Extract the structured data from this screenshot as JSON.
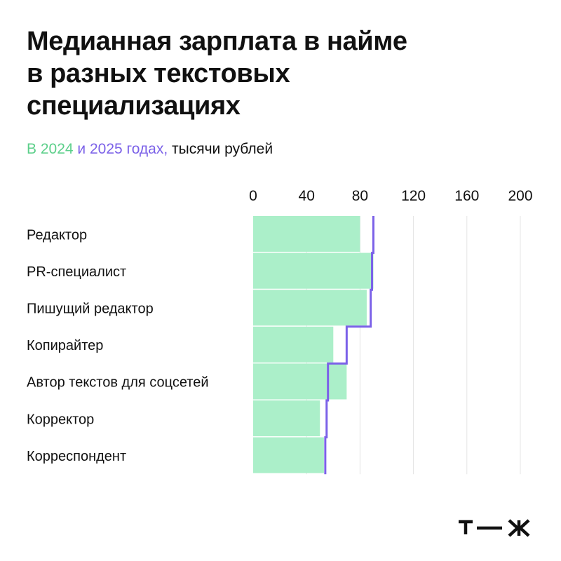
{
  "title_lines": [
    "Медианная зарплата в найме",
    "в разных текстовых",
    "специализациях"
  ],
  "subtitle": {
    "part1": "В 2024",
    "part2": " и 2025 годах,",
    "part3": " тысячи рублей"
  },
  "colors": {
    "series_2024": "#abefc9",
    "series_2025": "#7b61e8",
    "subtitle_2024": "#5ccf8a",
    "grid": "#e4e4e4",
    "text": "#111111"
  },
  "logo_text": "т—ж",
  "chart_data": {
    "type": "bar",
    "orientation": "horizontal",
    "xlim": [
      0,
      200
    ],
    "ticks": [
      "0",
      "40",
      "80",
      "120",
      "160",
      "200"
    ],
    "categories": [
      "Редактор",
      "PR-специалист",
      "Пишущий редактор",
      "Копирайтер",
      "Автор текстов для соцсетей",
      "Корректор",
      "Корреспондент"
    ],
    "series": [
      {
        "name": "2024",
        "type": "bar",
        "values": [
          80,
          90,
          85,
          60,
          70,
          50,
          53
        ]
      },
      {
        "name": "2025",
        "type": "step-line",
        "values": [
          90,
          89,
          88,
          70,
          56,
          55,
          54
        ]
      }
    ],
    "grid": true,
    "xaxis_position": "top"
  }
}
